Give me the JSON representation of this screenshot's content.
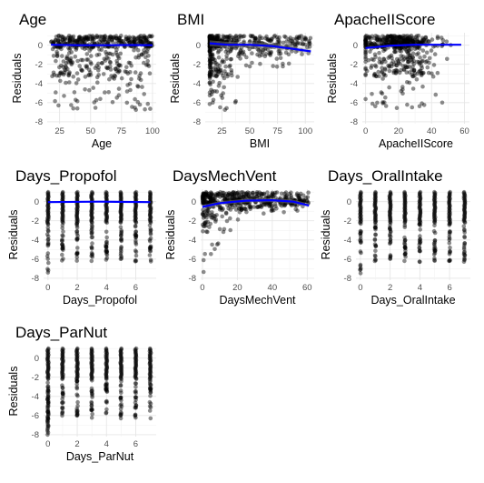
{
  "chart_data": [
    {
      "type": "scatter",
      "title": "Age",
      "xlabel": "Age",
      "ylabel": "Residuals",
      "xlim": [
        15,
        103
      ],
      "ylim": [
        -8.2,
        1.3
      ],
      "xticks": [
        25,
        50,
        75,
        100
      ],
      "yticks": [
        0,
        -2,
        -4,
        -6,
        -8
      ],
      "x_kind": "continuous",
      "x_range": [
        18,
        100
      ],
      "density": "heavy",
      "smooth": [
        [
          18,
          0.05
        ],
        [
          40,
          0.0
        ],
        [
          60,
          0.0
        ],
        [
          80,
          0.02
        ],
        [
          100,
          0.0
        ]
      ],
      "band": 0.05,
      "line_color": "#0000ff",
      "point_color": "#000000"
    },
    {
      "type": "scatter",
      "title": "BMI",
      "xlabel": "BMI",
      "ylabel": "Residuals",
      "xlim": [
        10,
        108
      ],
      "ylim": [
        -8.2,
        1.3
      ],
      "xticks": [
        25,
        50,
        75,
        100
      ],
      "yticks": [
        0,
        -2,
        -4,
        -6,
        -8
      ],
      "x_kind": "continuous",
      "x_range": [
        14,
        105
      ],
      "density": "left-heavy",
      "smooth": [
        [
          14,
          0.2
        ],
        [
          30,
          0.05
        ],
        [
          50,
          0.05
        ],
        [
          70,
          -0.1
        ],
        [
          90,
          -0.4
        ],
        [
          105,
          -0.65
        ]
      ],
      "band": 0.3,
      "line_color": "#0000ff",
      "point_color": "#000000"
    },
    {
      "type": "scatter",
      "title": "ApacheIIScore",
      "xlabel": "ApacheIIScore",
      "ylabel": "Residuals",
      "xlim": [
        -2,
        63
      ],
      "ylim": [
        -8.2,
        1.3
      ],
      "xticks": [
        0,
        20,
        40,
        60
      ],
      "yticks": [
        0,
        -2,
        -4,
        -6,
        -8
      ],
      "x_kind": "continuous",
      "x_range": [
        0,
        58
      ],
      "density": "center-heavy",
      "smooth": [
        [
          0,
          -0.3
        ],
        [
          15,
          -0.05
        ],
        [
          30,
          0.05
        ],
        [
          45,
          0.05
        ],
        [
          58,
          0.05
        ]
      ],
      "band": 0.08,
      "line_color": "#0000ff",
      "point_color": "#000000"
    },
    {
      "type": "scatter",
      "title": "Days_Propofol",
      "xlabel": "Days_Propofol",
      "ylabel": "Residuals",
      "xlim": [
        -0.3,
        7.4
      ],
      "ylim": [
        -8.2,
        1.3
      ],
      "xticks": [
        0,
        2,
        4,
        6
      ],
      "yticks": [
        0,
        -2,
        -4,
        -6,
        -8
      ],
      "x_kind": "discrete",
      "x_values": [
        0,
        1,
        2,
        3,
        4,
        5,
        6,
        7
      ],
      "smooth": [
        [
          0,
          -0.05
        ],
        [
          3.5,
          0.0
        ],
        [
          7,
          -0.05
        ]
      ],
      "band": 0.04,
      "line_color": "#0000ff",
      "point_color": "#000000"
    },
    {
      "type": "scatter",
      "title": "DaysMechVent",
      "xlabel": "DaysMechVent",
      "ylabel": "Residuals",
      "xlim": [
        -1,
        64
      ],
      "ylim": [
        -8.2,
        1.3
      ],
      "xticks": [
        0,
        20,
        40,
        60
      ],
      "yticks": [
        0,
        -2,
        -4,
        -6,
        -8
      ],
      "x_kind": "continuous",
      "x_range": [
        0,
        61
      ],
      "density": "funnel",
      "smooth": [
        [
          0,
          -0.55
        ],
        [
          10,
          -0.15
        ],
        [
          25,
          0.1
        ],
        [
          40,
          0.15
        ],
        [
          52,
          0.0
        ],
        [
          61,
          -0.4
        ]
      ],
      "band": 0.2,
      "line_color": "#0000ff",
      "point_color": "#000000"
    },
    {
      "type": "scatter",
      "title": "Days_OralIntake",
      "xlabel": "Days_OralIntake",
      "ylabel": "Residuals",
      "xlim": [
        -0.3,
        7.4
      ],
      "ylim": [
        -8.2,
        1.3
      ],
      "xticks": [
        0,
        2,
        4,
        6
      ],
      "yticks": [
        0,
        -2,
        -4,
        -6,
        -8
      ],
      "x_kind": "discrete",
      "x_values": [
        0,
        1,
        2,
        3,
        4,
        5,
        6,
        7
      ]
    },
    {
      "type": "scatter",
      "title": "Days_ParNut",
      "xlabel": "Days_ParNut",
      "ylabel": "Residuals",
      "xlim": [
        -0.3,
        7.4
      ],
      "ylim": [
        -8.2,
        1.3
      ],
      "xticks": [
        0,
        2,
        4,
        6
      ],
      "yticks": [
        0,
        -2,
        -4,
        -6,
        -8
      ],
      "x_kind": "discrete",
      "x_values": [
        0,
        1,
        2,
        3,
        4,
        5,
        6,
        7
      ]
    }
  ]
}
